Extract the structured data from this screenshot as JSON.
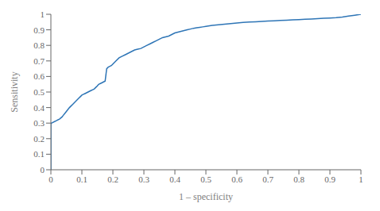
{
  "chart_data": {
    "type": "line",
    "xlabel": "1 – specificity",
    "ylabel": "Sensitivity",
    "color": "#2E75B6",
    "grid": false,
    "xlim": [
      0,
      1
    ],
    "ylim": [
      0,
      1
    ],
    "xticks": [
      0,
      0.1,
      0.2,
      0.3,
      0.4,
      0.5,
      0.6,
      0.7,
      0.8,
      0.9,
      1
    ],
    "yticks": [
      0,
      0.1,
      0.2,
      0.3,
      0.4,
      0.5,
      0.6,
      0.7,
      0.8,
      0.9,
      1
    ],
    "x": [
      0.0,
      0.0,
      0.002,
      0.004,
      0.006,
      0.008,
      0.01,
      0.012,
      0.015,
      0.018,
      0.02,
      0.022,
      0.025,
      0.028,
      0.03,
      0.033,
      0.036,
      0.04,
      0.044,
      0.048,
      0.052,
      0.056,
      0.06,
      0.065,
      0.07,
      0.075,
      0.08,
      0.085,
      0.09,
      0.095,
      0.1,
      0.105,
      0.11,
      0.115,
      0.12,
      0.125,
      0.13,
      0.135,
      0.14,
      0.145,
      0.15,
      0.152,
      0.155,
      0.16,
      0.165,
      0.17,
      0.175,
      0.18,
      0.185,
      0.19,
      0.195,
      0.2,
      0.21,
      0.22,
      0.23,
      0.24,
      0.25,
      0.26,
      0.27,
      0.28,
      0.29,
      0.3,
      0.31,
      0.32,
      0.33,
      0.34,
      0.35,
      0.36,
      0.37,
      0.38,
      0.39,
      0.4,
      0.41,
      0.42,
      0.43,
      0.44,
      0.45,
      0.46,
      0.47,
      0.48,
      0.49,
      0.5,
      0.52,
      0.54,
      0.56,
      0.58,
      0.6,
      0.62,
      0.64,
      0.66,
      0.68,
      0.7,
      0.72,
      0.74,
      0.76,
      0.78,
      0.8,
      0.82,
      0.84,
      0.86,
      0.88,
      0.9,
      0.92,
      0.94,
      0.96,
      0.98,
      1.0
    ],
    "values": [
      0.0,
      0.3,
      0.3,
      0.302,
      0.304,
      0.306,
      0.308,
      0.31,
      0.313,
      0.316,
      0.318,
      0.32,
      0.323,
      0.326,
      0.33,
      0.335,
      0.34,
      0.35,
      0.36,
      0.37,
      0.38,
      0.39,
      0.4,
      0.41,
      0.42,
      0.43,
      0.44,
      0.45,
      0.46,
      0.47,
      0.48,
      0.485,
      0.49,
      0.495,
      0.5,
      0.505,
      0.51,
      0.515,
      0.52,
      0.53,
      0.54,
      0.545,
      0.55,
      0.555,
      0.56,
      0.565,
      0.57,
      0.65,
      0.66,
      0.665,
      0.67,
      0.68,
      0.7,
      0.72,
      0.73,
      0.74,
      0.75,
      0.76,
      0.77,
      0.775,
      0.78,
      0.79,
      0.8,
      0.81,
      0.82,
      0.83,
      0.84,
      0.85,
      0.855,
      0.86,
      0.87,
      0.88,
      0.885,
      0.89,
      0.895,
      0.9,
      0.905,
      0.91,
      0.913,
      0.916,
      0.919,
      0.922,
      0.928,
      0.932,
      0.936,
      0.94,
      0.944,
      0.948,
      0.95,
      0.952,
      0.954,
      0.956,
      0.958,
      0.96,
      0.962,
      0.964,
      0.966,
      0.968,
      0.97,
      0.972,
      0.974,
      0.976,
      0.978,
      0.982,
      0.988,
      0.994,
      1.0
    ]
  }
}
